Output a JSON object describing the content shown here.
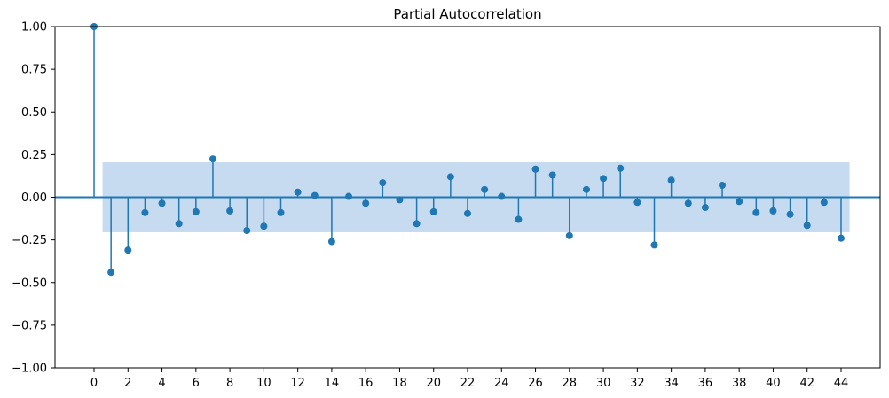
{
  "chart_data": {
    "type": "stem",
    "title": "Partial Autocorrelation",
    "xlabel": "",
    "ylabel": "",
    "xlim": [
      -2.3,
      46.3
    ],
    "ylim": [
      -1.0,
      1.0
    ],
    "x_ticks": [
      0,
      2,
      4,
      6,
      8,
      10,
      12,
      14,
      16,
      18,
      20,
      22,
      24,
      26,
      28,
      30,
      32,
      34,
      36,
      38,
      40,
      42,
      44
    ],
    "y_ticks": [
      -1.0,
      -0.75,
      -0.5,
      -0.25,
      0.0,
      0.25,
      0.5,
      0.75,
      1.0
    ],
    "y_tick_labels": [
      "−1.00",
      "−0.75",
      "−0.50",
      "−0.25",
      "0.00",
      "0.25",
      "0.50",
      "0.75",
      "1.00"
    ],
    "grid": false,
    "colors": {
      "series": "#1f77b4",
      "confidence_band": "#c6dbef"
    },
    "confidence_band": {
      "x_range": [
        0.5,
        44.5
      ],
      "upper": 0.205,
      "lower": -0.205
    },
    "lags": [
      0,
      1,
      2,
      3,
      4,
      5,
      6,
      7,
      8,
      9,
      10,
      11,
      12,
      13,
      14,
      15,
      16,
      17,
      18,
      19,
      20,
      21,
      22,
      23,
      24,
      25,
      26,
      27,
      28,
      29,
      30,
      31,
      32,
      33,
      34,
      35,
      36,
      37,
      38,
      39,
      40,
      41,
      42,
      43,
      44
    ],
    "values": [
      1.0,
      -0.44,
      -0.31,
      -0.09,
      -0.035,
      -0.155,
      -0.085,
      0.225,
      -0.08,
      -0.195,
      -0.17,
      -0.09,
      0.03,
      0.01,
      -0.26,
      0.005,
      -0.035,
      0.085,
      -0.015,
      -0.155,
      -0.085,
      0.12,
      -0.095,
      0.045,
      0.005,
      -0.13,
      0.165,
      0.13,
      -0.225,
      0.045,
      0.11,
      0.17,
      -0.03,
      -0.28,
      0.1,
      -0.035,
      -0.06,
      0.07,
      -0.025,
      -0.09,
      -0.08,
      -0.1,
      -0.165,
      -0.03,
      -0.24
    ]
  }
}
